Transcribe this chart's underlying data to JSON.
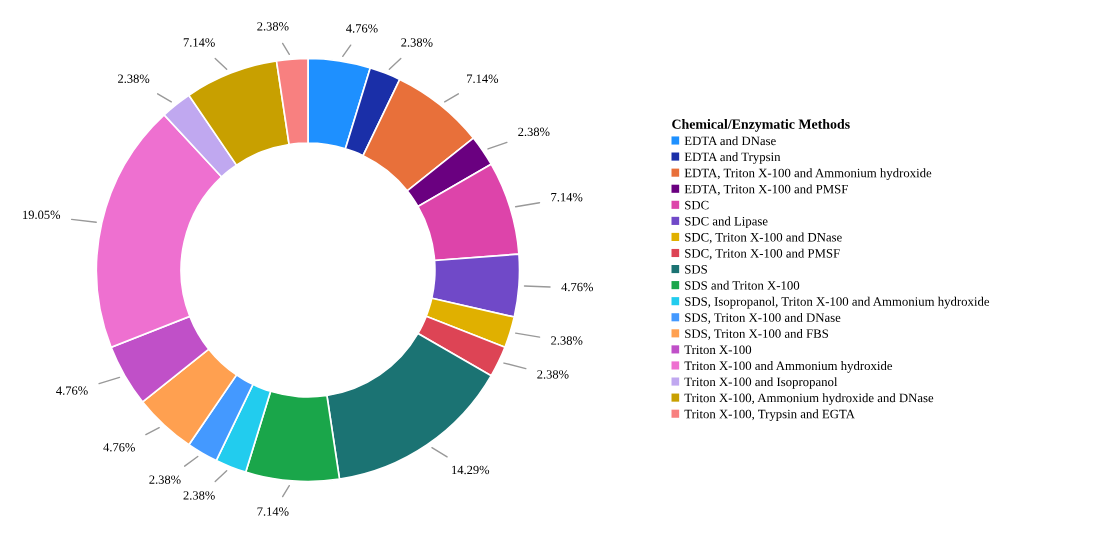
{
  "chart_data": {
    "type": "donut",
    "legend_title": "Chemical/Enzymatic Methods",
    "legend": "right",
    "categories": [
      "EDTA and DNase",
      "EDTA and Trypsin",
      "EDTA, Triton X-100 and Ammonium hydroxide",
      "EDTA, Triton X-100 and PMSF",
      "SDC",
      "SDC and Lipase",
      "SDC, Triton X-100 and DNase",
      "SDC, Triton X-100 and PMSF",
      "SDS",
      "SDS and Triton X-100",
      "SDS, Isopropanol, Triton X-100 and Ammonium hydroxide",
      "SDS, Triton X-100 and DNase",
      "SDS, Triton X-100 and FBS",
      "Triton X-100",
      "Triton X-100 and Ammonium hydroxide",
      "Triton X-100 and Isopropanol",
      "Triton X-100, Ammonium hydroxide and DNase",
      "Triton X-100, Trypsin and EGTA"
    ],
    "values": [
      4.76,
      2.38,
      7.14,
      2.38,
      7.14,
      4.76,
      2.38,
      2.38,
      14.29,
      7.14,
      2.38,
      2.38,
      4.76,
      4.76,
      19.05,
      2.38,
      7.14,
      2.38
    ],
    "value_labels": [
      "4.76%",
      "2.38%",
      "7.14%",
      "2.38%",
      "7.14%",
      "4.76%",
      "2.38%",
      "2.38%",
      "14.29%",
      "7.14%",
      "2.38%",
      "2.38%",
      "4.76%",
      "4.76%",
      "19.05%",
      "2.38%",
      "7.14%",
      "2.38%"
    ],
    "colors": [
      "#1e90ff",
      "#1a2fa8",
      "#e8703a",
      "#6a0080",
      "#dd44aa",
      "#7049c8",
      "#e0b000",
      "#dd4455",
      "#1b7373",
      "#1aa64a",
      "#22ccee",
      "#4499ff",
      "#ffa050",
      "#c050c8",
      "#ee70d0",
      "#c0a8f0",
      "#c8a000",
      "#f88080"
    ]
  }
}
